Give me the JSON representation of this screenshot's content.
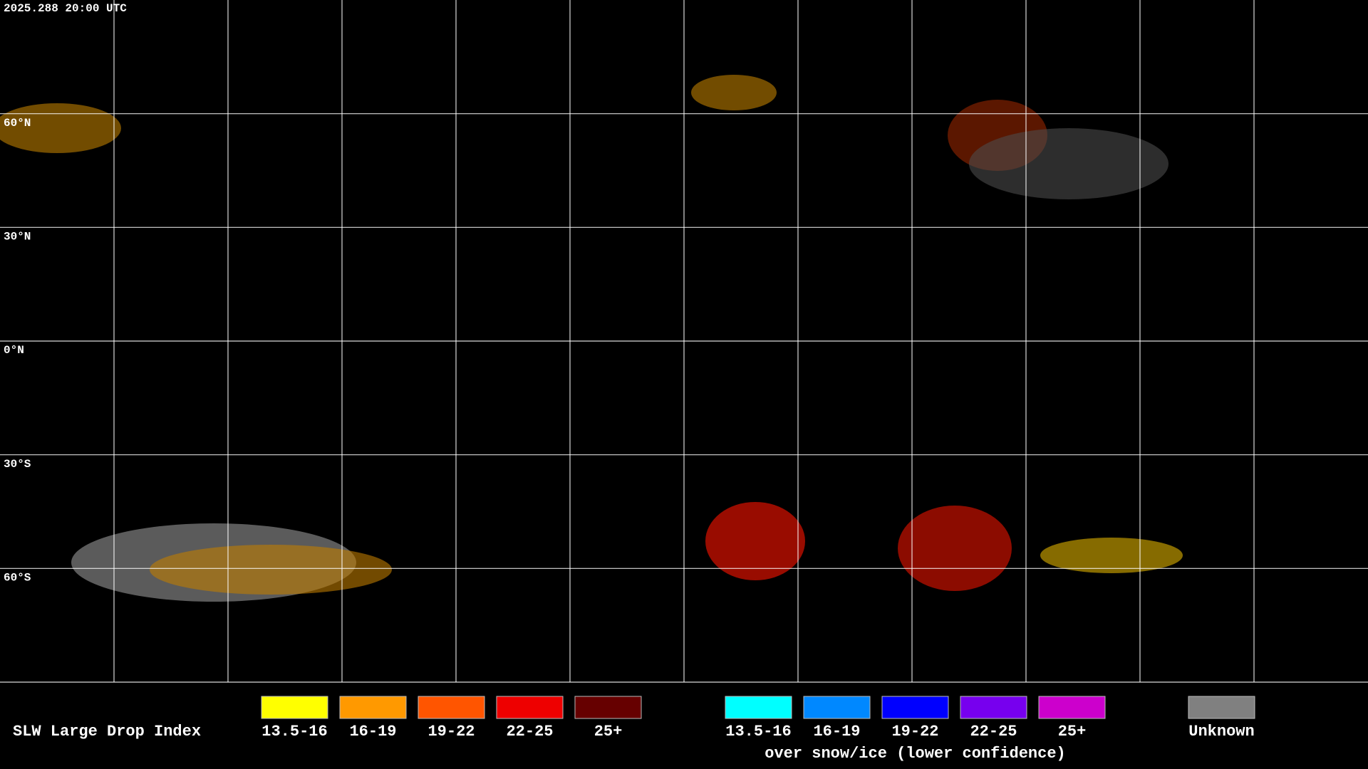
{
  "timestamp": "2025.288 20:00 UTC",
  "map": {
    "ylim": [
      -90,
      90
    ],
    "lat_labels": [
      {
        "value": 60,
        "label": "60°N"
      },
      {
        "value": 30,
        "label": "30°N"
      },
      {
        "value": 0,
        "label": "0°N"
      },
      {
        "value": -30,
        "label": "30°S"
      },
      {
        "value": -60,
        "label": "60°S"
      }
    ]
  },
  "legend": {
    "title": "SLW Large Drop Index",
    "groups": [
      {
        "items": [
          {
            "label": "13.5-16",
            "color": "#ffff00"
          },
          {
            "label": "16-19",
            "color": "#ff9900"
          },
          {
            "label": "19-22",
            "color": "#ff5500"
          },
          {
            "label": "22-25",
            "color": "#ee0000"
          },
          {
            "label": "25+",
            "color": "#660000"
          }
        ]
      },
      {
        "items": [
          {
            "label": "13.5-16",
            "color": "#00ffff"
          },
          {
            "label": "16-19",
            "color": "#0088ff"
          },
          {
            "label": "19-22",
            "color": "#0000ff"
          },
          {
            "label": "22-25",
            "color": "#7700ee"
          },
          {
            "label": "25+",
            "color": "#cc00cc"
          }
        ],
        "note": "over snow/ice (lower confidence)"
      },
      {
        "items": [
          {
            "label": "Unknown",
            "color": "#808080"
          }
        ]
      }
    ]
  }
}
